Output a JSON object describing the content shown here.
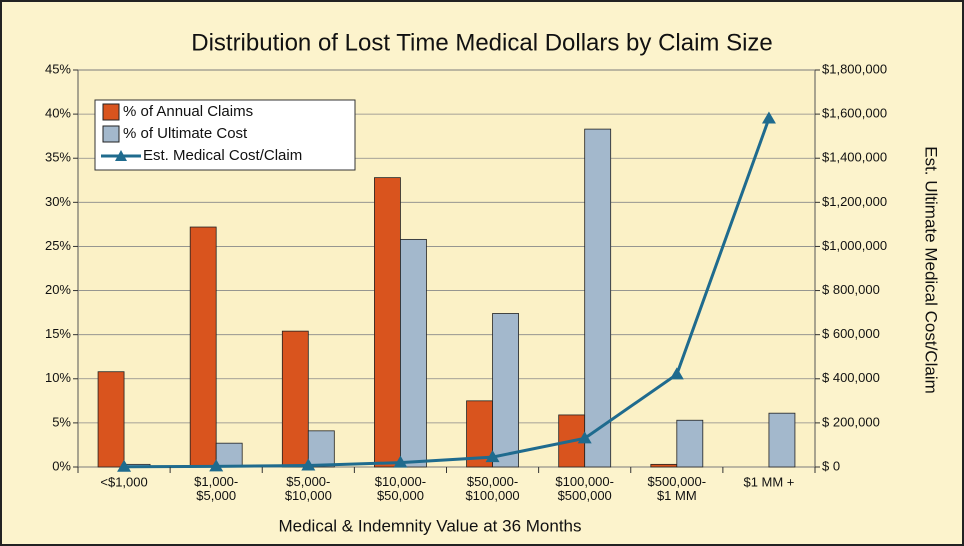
{
  "chart_data": {
    "type": "bar",
    "title": "Distribution of Lost Time Medical Dollars by Claim Size",
    "x_label": "Medical & Indemnity Value at 36 Months",
    "y2_label": "Est. Ultimate Medical Cost/Claim",
    "categories": [
      "<$1,000",
      "$1,000-\n$5,000",
      "$5,000-\n$10,000",
      "$10,000-\n$50,000",
      "$50,000-\n$100,000",
      "$100,000-\n$500,000",
      "$500,000-\n$1 MM",
      "$1 MM +"
    ],
    "series": [
      {
        "name": "% of Annual Claims",
        "color": "#d9541e",
        "type": "bar",
        "values": [
          10.8,
          27.2,
          15.4,
          32.8,
          7.5,
          5.9,
          0.3,
          0
        ]
      },
      {
        "name": "% of Ultimate Cost",
        "color": "#a3b8cc",
        "type": "bar",
        "values": [
          0.3,
          2.7,
          4.1,
          25.8,
          17.4,
          38.3,
          5.3,
          6.1
        ]
      },
      {
        "name": "Est. Medical Cost/Claim",
        "color": "#1f6b8e",
        "type": "line",
        "axis": "y2",
        "values": [
          1000,
          3000,
          7000,
          20000,
          45000,
          130000,
          420000,
          1580000
        ]
      }
    ],
    "ylim": [
      0,
      45
    ],
    "yticks": [
      {
        "value": 0,
        "label": "0%"
      },
      {
        "value": 5,
        "label": "5%"
      },
      {
        "value": 10,
        "label": "10%"
      },
      {
        "value": 15,
        "label": "15%"
      },
      {
        "value": 20,
        "label": "20%"
      },
      {
        "value": 25,
        "label": "25%"
      },
      {
        "value": 30,
        "label": "30%"
      },
      {
        "value": 35,
        "label": "35%"
      },
      {
        "value": 40,
        "label": "40%"
      },
      {
        "value": 45,
        "label": "45%"
      }
    ],
    "y2lim": [
      0,
      1800000
    ],
    "y2ticks": [
      {
        "value": 0,
        "label": "$ 0"
      },
      {
        "value": 200000,
        "label": "$ 200,000"
      },
      {
        "value": 400000,
        "label": "$ 400,000"
      },
      {
        "value": 600000,
        "label": "$ 600,000"
      },
      {
        "value": 800000,
        "label": "$ 800,000"
      },
      {
        "value": 1000000,
        "label": "$1,000,000"
      },
      {
        "value": 1200000,
        "label": "$1,200,000"
      },
      {
        "value": 1400000,
        "label": "$1,400,000"
      },
      {
        "value": 1600000,
        "label": "$1,600,000"
      },
      {
        "value": 1800000,
        "label": "$1,800,000"
      }
    ],
    "grid": true,
    "legend": "upper left"
  }
}
